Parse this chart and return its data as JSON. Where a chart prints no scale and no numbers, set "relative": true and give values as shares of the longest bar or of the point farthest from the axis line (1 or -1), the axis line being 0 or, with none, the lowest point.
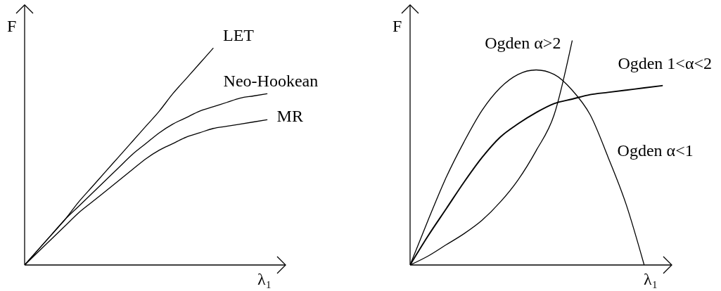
{
  "chart_data": [
    {
      "type": "line",
      "relative": true,
      "xlabel": "λ₁",
      "ylabel": "F",
      "marker": "none",
      "categories": [
        null,
        null,
        null,
        null,
        null,
        null,
        null,
        null,
        null,
        null,
        null,
        null,
        null,
        null,
        null,
        null,
        null,
        null,
        null,
        null
      ],
      "series": [
        {
          "name": "LET",
          "color": "#000000",
          "values": [
            0,
            0.07,
            0.14,
            0.21,
            0.29,
            0.36,
            0.43,
            0.5,
            0.57,
            0.64,
            0.71,
            0.79,
            0.86,
            0.93,
            1,
            null,
            null,
            null,
            null,
            null
          ]
        },
        {
          "name": "Neo-Hookean",
          "color": "#000000",
          "values": [
            0,
            0.07,
            0.14,
            0.21,
            0.27,
            0.33,
            0.39,
            0.45,
            0.51,
            0.56,
            0.61,
            0.65,
            0.68,
            0.71,
            0.73,
            0.75,
            0.77,
            0.78,
            0.79,
            null
          ]
        },
        {
          "name": "MR",
          "color": "#000000",
          "values": [
            0,
            0.06,
            0.12,
            0.18,
            0.24,
            0.29,
            0.34,
            0.39,
            0.44,
            0.49,
            0.53,
            0.56,
            0.59,
            0.61,
            0.63,
            0.64,
            0.65,
            0.66,
            0.67,
            null
          ]
        }
      ]
    },
    {
      "type": "line",
      "relative": true,
      "xlabel": "λ₁",
      "ylabel": "F",
      "marker": "none",
      "categories": [
        null,
        null,
        null,
        null,
        null,
        null,
        null,
        null,
        null,
        null,
        null,
        null,
        null,
        null,
        null
      ],
      "series": [
        {
          "name": "Ogden α>2",
          "color": "#000000",
          "values": [
            0,
            0.04,
            0.09,
            0.14,
            0.2,
            0.28,
            0.38,
            0.51,
            0.67,
            1,
            null,
            null,
            null,
            null,
            null
          ]
        },
        {
          "name": "Ogden 1<α<2",
          "color": "#000000",
          "values": [
            0,
            0.13,
            0.25,
            0.37,
            0.48,
            0.57,
            0.63,
            0.68,
            0.72,
            0.74,
            0.76,
            0.77,
            0.78,
            0.79,
            0.8
          ]
        },
        {
          "name": "Ogden α<1",
          "color": "#000000",
          "values": [
            0,
            0.2,
            0.39,
            0.55,
            0.69,
            0.79,
            0.85,
            0.87,
            0.85,
            0.78,
            0.67,
            0.48,
            0.27,
            0,
            null
          ]
        }
      ]
    }
  ]
}
